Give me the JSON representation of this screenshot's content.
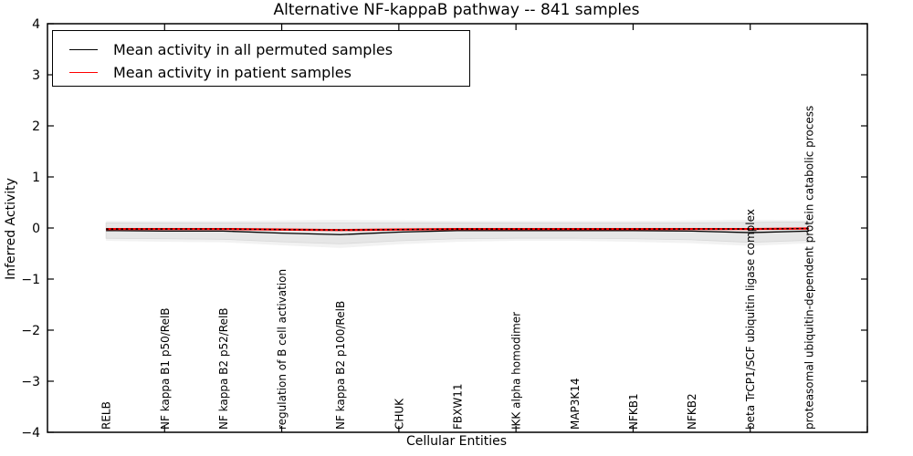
{
  "title": "Alternative NF-kappaB pathway -- 841 samples",
  "legend": {
    "items": [
      {
        "label": "Mean activity in all permuted samples",
        "color": "#000000",
        "line_width": 1.3
      },
      {
        "label": "Mean activity in patient samples",
        "color": "#ff0000",
        "line_width": 1.8
      }
    ],
    "position": "upper left"
  },
  "axes": {
    "x_label": "Cellular Entities",
    "y_label": "Inferred Activity",
    "y_ticks": [
      4,
      3,
      2,
      1,
      0,
      -1,
      -2,
      -3,
      -4
    ],
    "x_tick_positions": [
      2,
      4,
      6,
      8,
      10,
      12,
      14
    ],
    "x_range": [
      0,
      14
    ],
    "y_range": [
      -4,
      4
    ]
  },
  "colors": {
    "frame": "#000000",
    "patient_line": "#ff0000",
    "permuted_line": "#000000",
    "dashed_overlay": "#000000",
    "band_inner": "#e6e6e6",
    "band_outer": "#f2f2f2",
    "band_edge": "#d8d8d8",
    "background": "#ffffff"
  },
  "chart_data": {
    "type": "line",
    "title": "Alternative NF-kappaB pathway -- 841 samples",
    "xlabel": "Cellular Entities",
    "ylabel": "Inferred Activity",
    "ylim": [
      -4,
      4
    ],
    "xlim": [
      0,
      14
    ],
    "grid": false,
    "legend_position": "upper left",
    "x": [
      1,
      2,
      3,
      4,
      5,
      6,
      7,
      8,
      9,
      10,
      11,
      12,
      13
    ],
    "categories": [
      "RELB",
      "NF kappa B1 p50/RelB",
      "NF kappa B2 p52/RelB",
      "regulation of B cell activation",
      "NF kappa B2 p100/RelB",
      "CHUK",
      "FBXW11",
      "IKK alpha homodimer",
      "MAP3K14",
      "NFKB1",
      "NFKB2",
      "beta TrCP1/SCF ubiquitin ligase complex",
      "proteasomal ubiquitin-dependent protein catabolic process"
    ],
    "series": [
      {
        "name": "Mean activity in all permuted samples",
        "color": "#000000",
        "style": "solid",
        "values": [
          -0.05,
          -0.06,
          -0.06,
          -0.1,
          -0.13,
          -0.08,
          -0.05,
          -0.05,
          -0.05,
          -0.05,
          -0.06,
          -0.09,
          -0.06
        ]
      },
      {
        "name": "Mean activity in patient samples",
        "color": "#ff0000",
        "style": "solid",
        "values": [
          -0.02,
          -0.02,
          -0.02,
          -0.03,
          -0.04,
          -0.03,
          -0.02,
          -0.02,
          -0.02,
          -0.02,
          -0.02,
          -0.02,
          -0.01
        ]
      },
      {
        "name": "patient mean dashed overlay",
        "color": "#000000",
        "style": "dotted",
        "values": [
          -0.02,
          -0.02,
          -0.02,
          -0.03,
          -0.04,
          -0.03,
          -0.02,
          -0.02,
          -0.02,
          -0.02,
          -0.02,
          -0.02,
          -0.01
        ]
      }
    ],
    "bands": [
      {
        "name": "permuted spread outer",
        "color": "#f2f2f2",
        "upper": [
          0.14,
          0.14,
          0.14,
          0.15,
          0.16,
          0.15,
          0.14,
          0.14,
          0.14,
          0.14,
          0.15,
          0.16,
          0.15
        ],
        "lower": [
          -0.25,
          -0.27,
          -0.28,
          -0.34,
          -0.39,
          -0.32,
          -0.27,
          -0.25,
          -0.25,
          -0.27,
          -0.3,
          -0.35,
          -0.3
        ]
      },
      {
        "name": "permuted spread inner",
        "color": "#e6e6e6",
        "upper": [
          0.1,
          0.1,
          0.1,
          0.1,
          0.1,
          0.1,
          0.1,
          0.1,
          0.1,
          0.1,
          0.1,
          0.11,
          0.12
        ],
        "lower": [
          -0.2,
          -0.21,
          -0.22,
          -0.27,
          -0.31,
          -0.25,
          -0.21,
          -0.2,
          -0.2,
          -0.21,
          -0.23,
          -0.28,
          -0.24
        ]
      }
    ]
  }
}
